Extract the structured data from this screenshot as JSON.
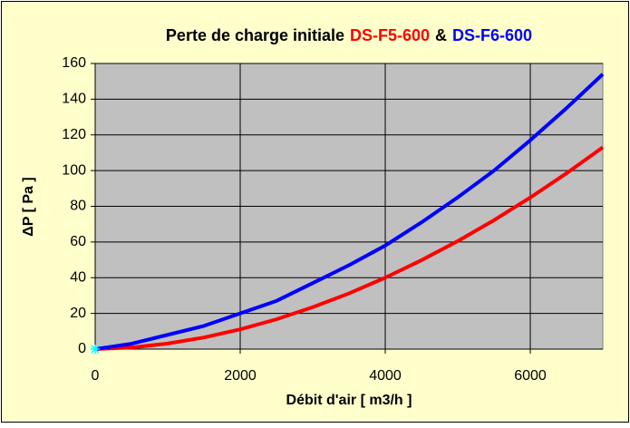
{
  "chart_data": {
    "type": "line",
    "title_parts": [
      {
        "text": "Perte de charge initiale",
        "color": "#000000"
      },
      {
        "text": "DS-F5-600",
        "color": "#ff0000"
      },
      {
        "text": "&",
        "color": "#000000"
      },
      {
        "text": "DS-F6-600",
        "color": "#0000ff"
      }
    ],
    "x_label": "Débit d'air  [ m3/h ]",
    "y_label": "ΔP  [ Pa ]",
    "x": [
      0,
      500,
      1000,
      1500,
      2000,
      2500,
      3000,
      3500,
      4000,
      4500,
      5000,
      5500,
      6000,
      6500,
      7000
    ],
    "series": [
      {
        "color": "#ff0000",
        "values": [
          0,
          0.9,
          3.1,
          6.5,
          11.1,
          16.7,
          23.5,
          31.2,
          40,
          49.8,
          60.5,
          72.2,
          84.9,
          98.5,
          113
        ]
      },
      {
        "color": "#0000ff",
        "values": [
          0,
          3,
          8,
          13,
          20,
          27,
          37,
          47,
          58,
          71,
          85,
          100,
          117,
          135,
          154
        ]
      }
    ],
    "xlim": [
      0,
      7000
    ],
    "xticks": [
      0,
      2000,
      4000,
      6000
    ],
    "ylim": [
      0,
      160
    ],
    "yticks": [
      0,
      20,
      40,
      60,
      80,
      100,
      120,
      140,
      160
    ],
    "grid": true,
    "plot_background": "#c0c0c0",
    "background": "#ffffcc"
  }
}
